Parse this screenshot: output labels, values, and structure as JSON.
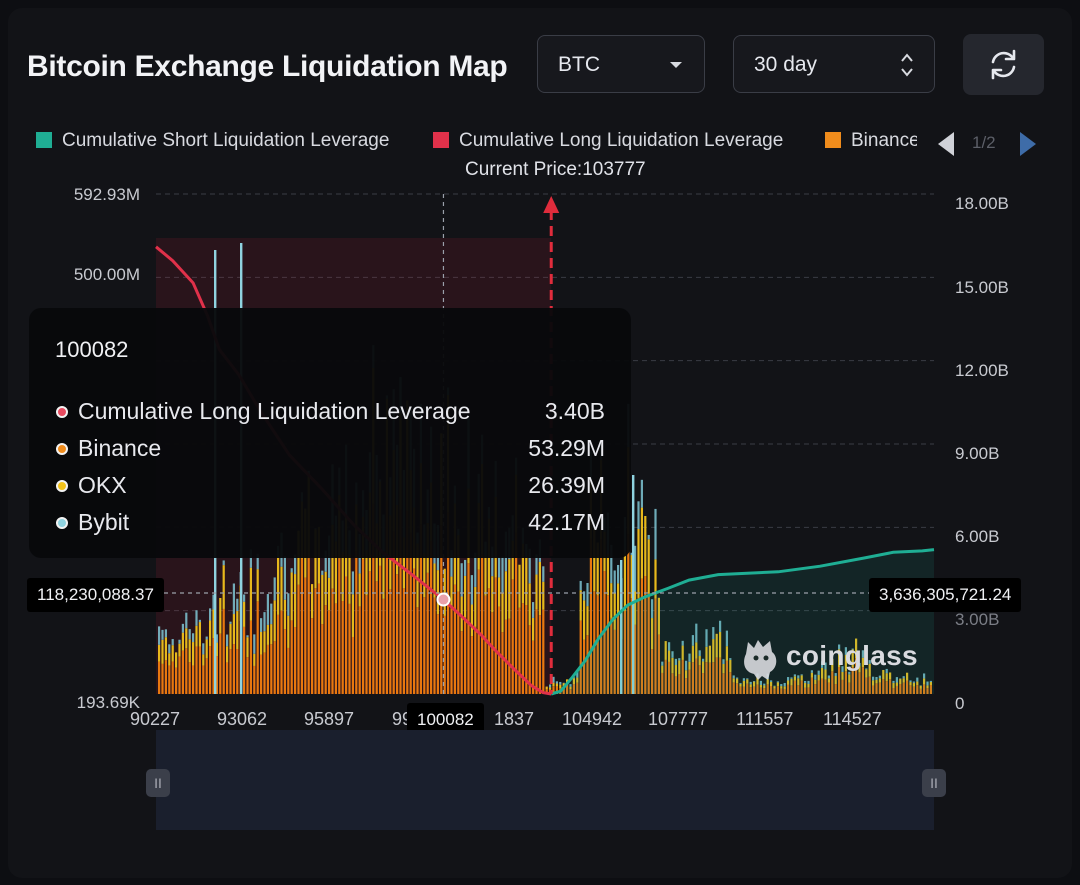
{
  "header": {
    "title": "Bitcoin Exchange Liquidation Map",
    "coin_select": "BTC",
    "range_select": "30 day",
    "refresh_icon": "refresh-icon"
  },
  "legend": {
    "items": [
      {
        "label": "Cumulative Short Liquidation Leverage",
        "color": "#1fae94"
      },
      {
        "label": "Cumulative Long Liquidation Leverage",
        "color": "#e0314a"
      },
      {
        "label": "Binance",
        "color": "#f08c1c"
      }
    ],
    "page": "1/2"
  },
  "current_price_label": "Current Price:103777",
  "axis_tags": {
    "left": "118,230,088.37",
    "right": "3,636,305,721.24",
    "x": "100082"
  },
  "tooltip": {
    "title": "100082",
    "rows": [
      {
        "name": "Cumulative Long Liquidation Leverage",
        "value": "3.40B",
        "color": "#e84a5f"
      },
      {
        "name": "Binance",
        "value": "53.29M",
        "color": "#f08c1c"
      },
      {
        "name": "OKX",
        "value": "26.39M",
        "color": "#f2c21a"
      },
      {
        "name": "Bybit",
        "value": "42.17M",
        "color": "#8fd3e0"
      }
    ]
  },
  "watermark": "coinglass",
  "chart_data": {
    "type": "bar",
    "title": "Bitcoin Exchange Liquidation Map",
    "x_axis_ticks": [
      "90227",
      "93062",
      "95897",
      "99",
      "1837",
      "104942",
      "107777",
      "111557",
      "114527"
    ],
    "x_range": [
      90227,
      116900
    ],
    "left_axis_ticks": [
      "592.93M",
      "500.00M",
      "193.69K"
    ],
    "left_range": [
      193690,
      592930000
    ],
    "right_axis_ticks": [
      "18.00B",
      "15.00B",
      "12.00B",
      "9.00B",
      "6.00B",
      "3.00B",
      "0"
    ],
    "right_range": [
      0,
      18000000000
    ],
    "current_price": 103777,
    "hover_price": 100082,
    "hover_left_value": 118230088.37,
    "hover_right_value": 3636305721.24,
    "series": [
      {
        "name": "Cumulative Short Liquidation Leverage",
        "axis": "right",
        "color": "#1fae94",
        "points": [
          [
            103777,
            0
          ],
          [
            104100,
            0.1
          ],
          [
            104500,
            0.6
          ],
          [
            104942,
            1.2
          ],
          [
            105400,
            2.0
          ],
          [
            105900,
            2.7
          ],
          [
            106400,
            3.2
          ],
          [
            107000,
            3.5
          ],
          [
            107777,
            3.8
          ],
          [
            108500,
            4.1
          ],
          [
            109500,
            4.3
          ],
          [
            111557,
            4.4
          ],
          [
            113000,
            4.6
          ],
          [
            114527,
            4.9
          ],
          [
            115500,
            5.1
          ],
          [
            116500,
            5.15
          ],
          [
            116900,
            5.2
          ]
        ]
      },
      {
        "name": "Cumulative Long Liquidation Leverage",
        "axis": "right",
        "color": "#e0314a",
        "points": [
          [
            90227,
            16.1
          ],
          [
            90800,
            15.6
          ],
          [
            91500,
            14.8
          ],
          [
            92000,
            13.6
          ],
          [
            92400,
            12.4
          ],
          [
            93062,
            11.5
          ],
          [
            93800,
            10.2
          ],
          [
            94800,
            8.6
          ],
          [
            95897,
            7.4
          ],
          [
            97000,
            6.1
          ],
          [
            98000,
            5.1
          ],
          [
            99000,
            4.3
          ],
          [
            99600,
            3.8
          ],
          [
            100082,
            3.4
          ],
          [
            100700,
            2.8
          ],
          [
            101400,
            2.1
          ],
          [
            101837,
            1.6
          ],
          [
            102500,
            0.9
          ],
          [
            103100,
            0.3
          ],
          [
            103500,
            0.05
          ],
          [
            103777,
            0
          ]
        ]
      },
      {
        "name": "Binance",
        "color": "#f08c1c"
      },
      {
        "name": "OKX",
        "color": "#f2c21a"
      },
      {
        "name": "Bybit",
        "color": "#8fd3e0"
      }
    ]
  }
}
